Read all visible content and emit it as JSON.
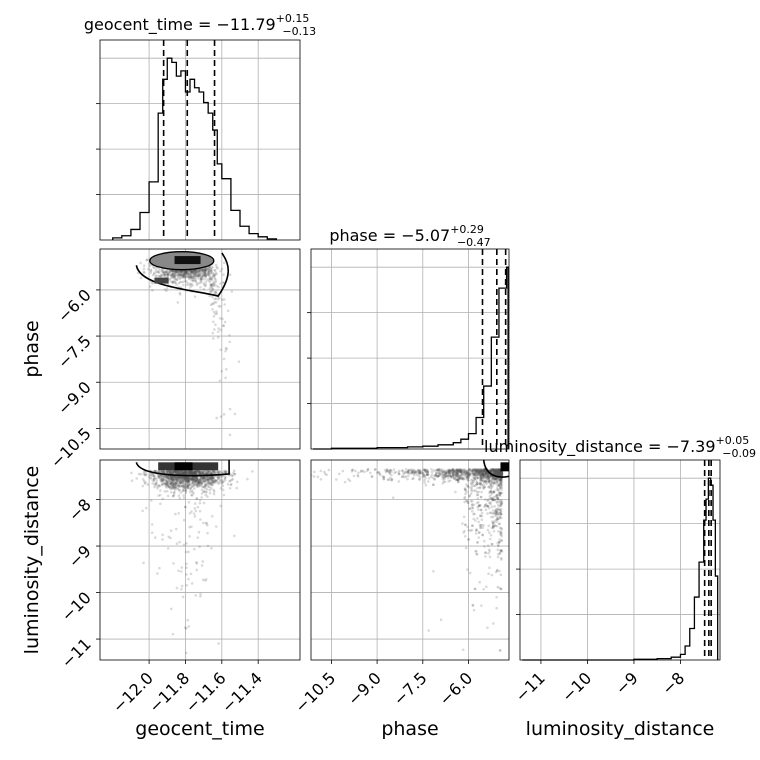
{
  "chart_data": {
    "type": "corner",
    "parameters": [
      "geocent_time",
      "phase",
      "luminosity_distance"
    ],
    "axis_labels": {
      "geocent_time": "geocent_time",
      "phase": "phase",
      "luminosity_distance": "luminosity_distance"
    },
    "ranges": {
      "geocent_time": [
        -12.27,
        -11.17
      ],
      "phase": [
        -11.17,
        -4.67
      ],
      "luminosity_distance": [
        -11.45,
        -7.15
      ]
    },
    "ticks": {
      "geocent_time": {
        "values": [
          -12.0,
          -11.8,
          -11.6,
          -11.4
        ],
        "labels": [
          "−12.0",
          "−11.8",
          "−11.6",
          "−11.4"
        ]
      },
      "phase": {
        "values": [
          -10.5,
          -9.0,
          -7.5,
          -6.0
        ],
        "labels": [
          "−10.5",
          "−9.0",
          "−7.5",
          "−6.0"
        ]
      },
      "luminosity_distance": {
        "values": [
          -11,
          -10,
          -9,
          -8
        ],
        "labels": [
          "−11",
          "−10",
          "−9",
          "−8"
        ]
      }
    },
    "titles": [
      {
        "param": "geocent_time",
        "prefix": "geocent_time = ",
        "median": "−11.79",
        "plus": "+0.15",
        "minus": "−0.13"
      },
      {
        "param": "phase",
        "prefix": "phase = ",
        "median": "−5.07",
        "plus": "+0.29",
        "minus": "−0.47"
      },
      {
        "param": "luminosity_distance",
        "prefix": "luminosity_distance = ",
        "median": "−7.39",
        "plus": "+0.05",
        "minus": "−0.09"
      }
    ],
    "quantiles": {
      "geocent_time": [
        -11.92,
        -11.79,
        -11.64
      ],
      "phase": [
        -5.54,
        -5.07,
        -4.78
      ],
      "luminosity_distance": [
        -7.48,
        -7.39,
        -7.34
      ]
    },
    "histograms": {
      "geocent_time": {
        "edges": [
          -12.2,
          -12.15,
          -12.1,
          -12.05,
          -12.0,
          -11.95,
          -11.925,
          -11.9,
          -11.875,
          -11.85,
          -11.825,
          -11.8,
          -11.775,
          -11.75,
          -11.725,
          -11.7,
          -11.675,
          -11.65,
          -11.625,
          -11.6,
          -11.55,
          -11.5,
          -11.45,
          -11.4,
          -11.35,
          -11.3
        ],
        "counts": [
          2,
          4,
          10,
          26,
          55,
          120,
          152,
          172,
          168,
          155,
          160,
          140,
          152,
          144,
          140,
          130,
          120,
          104,
          72,
          58,
          28,
          13,
          6,
          3,
          1
        ]
      },
      "phase": {
        "edges": [
          -11.1,
          -10.5,
          -10.0,
          -9.5,
          -9.0,
          -8.5,
          -8.0,
          -7.5,
          -7.0,
          -6.5,
          -6.25,
          -6.0,
          -5.75,
          -5.5,
          -5.25,
          -5.0,
          -4.75,
          -4.7
        ],
        "counts": [
          0,
          1,
          1,
          1,
          2,
          2,
          3,
          4,
          6,
          9,
          14,
          22,
          45,
          90,
          160,
          230,
          260
        ]
      },
      "luminosity_distance": {
        "edges": [
          -11.4,
          -9.0,
          -8.5,
          -8.2,
          -8.0,
          -7.9,
          -7.8,
          -7.7,
          -7.6,
          -7.5,
          -7.45,
          -7.4,
          -7.35,
          -7.3,
          -7.25,
          -7.2
        ],
        "counts": [
          0,
          1,
          2,
          4,
          8,
          20,
          45,
          90,
          140,
          200,
          230,
          260,
          250,
          200,
          120
        ]
      }
    },
    "grid": true,
    "contour_levels": 2
  }
}
